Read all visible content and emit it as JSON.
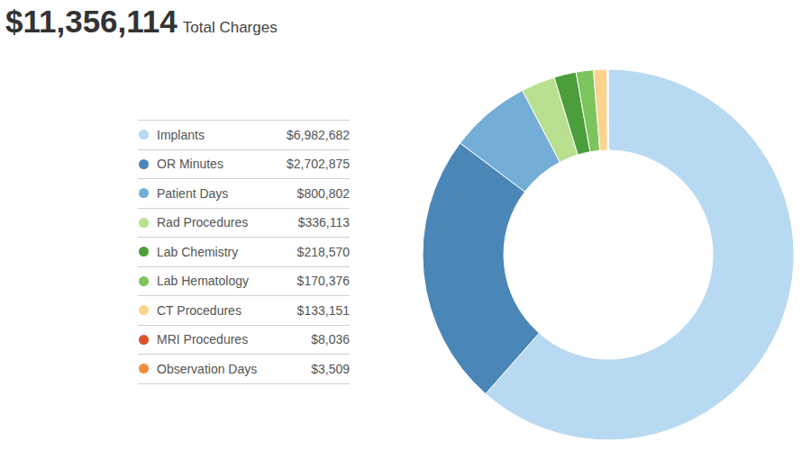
{
  "chart_data": {
    "type": "pie",
    "title": "$11,356,114",
    "subtitle": "Total Charges",
    "categories": [
      "Implants",
      "OR Minutes",
      "Patient Days",
      "Rad Procedures",
      "Lab Chemistry",
      "Lab Hematology",
      "CT Procedures",
      "MRI Procedures",
      "Observation Days"
    ],
    "values": [
      6982682,
      2702875,
      800802,
      336113,
      218570,
      170376,
      133151,
      8036,
      3509
    ],
    "value_labels": [
      "$6,982,682",
      "$2,702,875",
      "$800,802",
      "$336,113",
      "$218,570",
      "$170,376",
      "$133,151",
      "$8,036",
      "$3,509"
    ],
    "colors": [
      "#b8d9f2",
      "#4a86b8",
      "#74aed6",
      "#b8e08f",
      "#4c9e3a",
      "#7cc45c",
      "#fbd38d",
      "#d9532a",
      "#f28c38"
    ],
    "legend": "left"
  }
}
